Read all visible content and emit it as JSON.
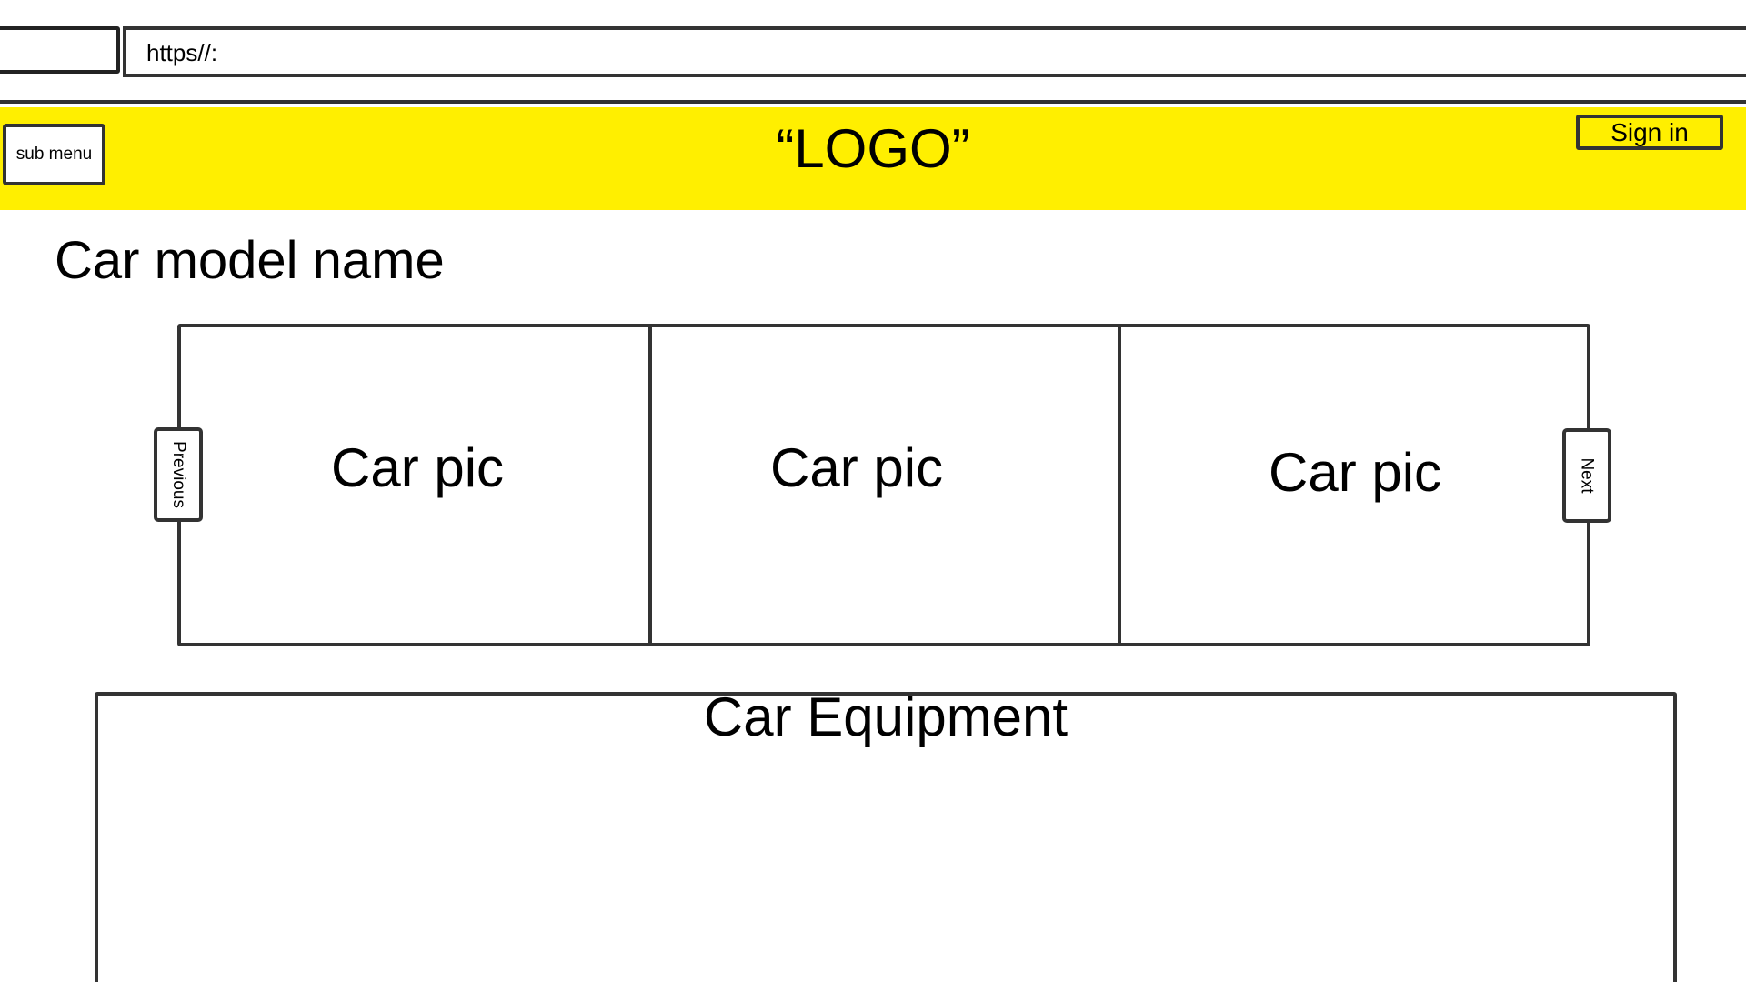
{
  "browser": {
    "url": "https//:"
  },
  "header": {
    "background_color": "#ffef00",
    "submenu_label": "sub menu",
    "logo_text": "“LOGO”",
    "signin_label": "Sign in"
  },
  "main": {
    "model_name": "Car model name",
    "gallery": {
      "pictures": [
        "Car pic",
        "Car pic",
        "Car pic"
      ],
      "previous_label": "Previous",
      "next_label": "Next"
    },
    "equipment_title": "Car Equipment"
  }
}
